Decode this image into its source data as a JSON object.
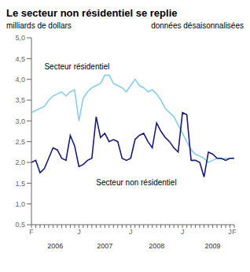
{
  "chart_data": {
    "type": "line",
    "title": "Le secteur non résidentiel se replie",
    "ylabel": "milliards de dollars",
    "subtitle": "données désaisonnalisées",
    "categories": [
      "F",
      null,
      null,
      null,
      null,
      null,
      null,
      null,
      null,
      null,
      null,
      "J",
      null,
      null,
      null,
      null,
      null,
      null,
      null,
      null,
      null,
      null,
      null,
      "J",
      null,
      null,
      null,
      null,
      null,
      null,
      null,
      null,
      null,
      null,
      null,
      "J",
      null,
      null,
      null,
      null,
      null,
      null,
      null,
      null,
      null,
      null,
      "J",
      "F"
    ],
    "series": [
      {
        "color": "#87CEEB",
        "values": [
          3.2,
          3.25,
          3.3,
          3.35,
          3.5,
          3.6,
          3.65,
          3.7,
          3.6,
          3.7,
          3.75,
          3.0,
          3.55,
          3.7,
          3.8,
          3.85,
          3.9,
          4.1,
          4.1,
          3.9,
          3.85,
          3.8,
          3.7,
          3.85,
          4.0,
          3.85,
          3.8,
          3.7,
          3.75,
          3.65,
          3.5,
          3.3,
          3.2,
          3.1,
          2.9,
          2.7,
          2.5,
          2.3,
          2.2,
          2.15,
          2.1,
          2.0,
          2.05,
          2.1,
          2.08,
          2.1,
          2.1,
          2.1
        ]
      },
      {
        "color": "#1a1a7a",
        "values": [
          2.0,
          2.05,
          1.75,
          1.85,
          2.1,
          2.35,
          2.3,
          2.1,
          2.05,
          2.65,
          2.4,
          1.9,
          1.95,
          2.05,
          2.1,
          3.1,
          2.6,
          2.7,
          2.5,
          2.55,
          2.5,
          2.1,
          2.05,
          2.1,
          2.55,
          2.65,
          2.7,
          2.5,
          2.35,
          2.95,
          2.75,
          2.6,
          2.5,
          2.35,
          2.25,
          3.2,
          3.15,
          2.05,
          2.05,
          2.0,
          1.65,
          2.25,
          2.2,
          2.1,
          2.1,
          2.05,
          2.1,
          2.1
        ]
      }
    ],
    "ylim": [
      0.5,
      5.0
    ],
    "yticks": [
      {
        "value": 0.5,
        "label": "0,5"
      },
      {
        "value": 1.0,
        "label": "1,0"
      },
      {
        "value": 1.5,
        "label": "1,5"
      },
      {
        "value": 2.0,
        "label": "2,0"
      },
      {
        "value": 2.5,
        "label": "2,5"
      },
      {
        "value": 3.0,
        "label": "3,0"
      },
      {
        "value": 3.5,
        "label": "3,5"
      },
      {
        "value": 4.0,
        "label": "4,0"
      },
      {
        "value": 4.5,
        "label": "4,5"
      },
      {
        "value": 5.0,
        "label": "5,0"
      }
    ],
    "annotations": [
      {
        "text": "Secteur résidentiel",
        "x": 3,
        "y": 4.2
      },
      {
        "text": "Secteur non résidentiel",
        "x": 15,
        "y": 1.42
      },
      {
        "text": "2006",
        "x": 5.5
      },
      {
        "text": "2007",
        "x": 17
      },
      {
        "text": "2008",
        "x": 29
      },
      {
        "text": "2009",
        "x": 42
      }
    ]
  }
}
